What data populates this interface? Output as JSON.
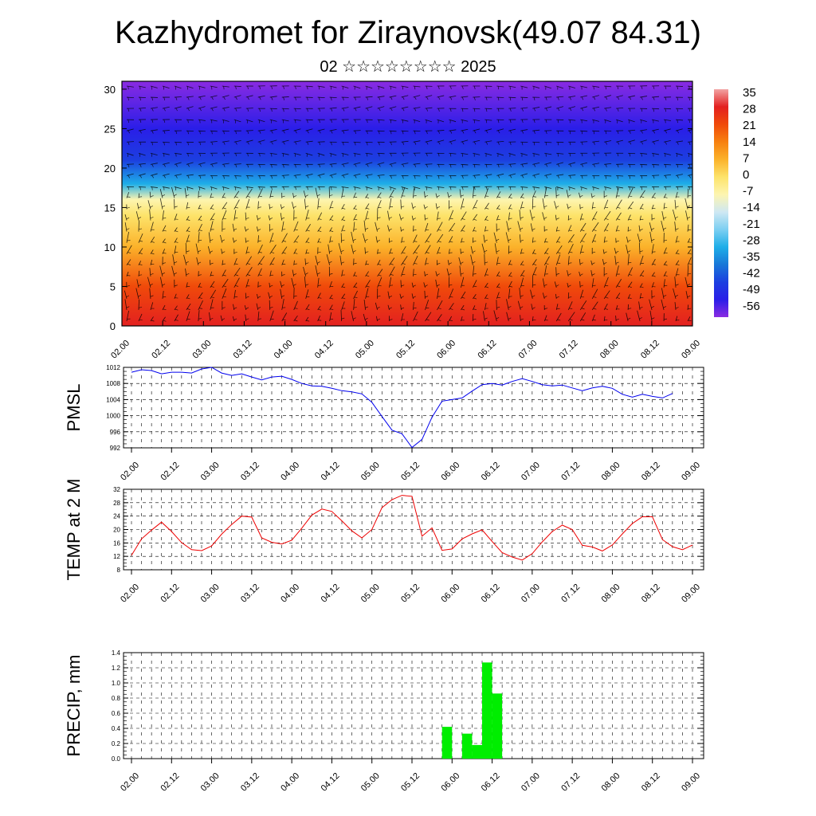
{
  "title": "Kazhydromet for Ziraynovsk(49.07 84.31)",
  "subtitle": "02 ☆☆☆☆☆☆☆☆ 2025",
  "colors": {
    "pmsl_line": "#0000ee",
    "temp_line": "#ee0000",
    "precip_bar": "#00ee00",
    "arrow": "#000000"
  },
  "chart_data": [
    {
      "type": "heatmap",
      "description_of_fill": "temperature by height (km) and time, with wind arrows",
      "x_tick_labels": [
        "02.00",
        "02.12",
        "03.00",
        "03.12",
        "04.00",
        "04.12",
        "05.00",
        "05.12",
        "06.00",
        "06.12",
        "07.00",
        "07.12",
        "08.00",
        "08.12",
        "09.00"
      ],
      "y_tick_labels": [
        "0",
        "5",
        "10",
        "15",
        "20",
        "25",
        "30"
      ],
      "ylim": [
        0,
        31
      ],
      "colorbar_labels": [
        "35",
        "28",
        "21",
        "14",
        "7",
        "0",
        "-7",
        "-14",
        "-21",
        "-28",
        "-35",
        "-42",
        "-49",
        "-56"
      ],
      "colorbar_colors": [
        "#f2a3a3",
        "#e32020",
        "#f04a0a",
        "#f7800f",
        "#fbb22a",
        "#fde36a",
        "#fdf5b0",
        "#cfe8f3",
        "#7ccff2",
        "#1eaee8",
        "#1877d8",
        "#1c3fe0",
        "#2a1ee8",
        "#8a2be2"
      ],
      "temperature_profile": [
        {
          "height_km": 0,
          "temp": 30
        },
        {
          "height_km": 5,
          "temp": 20
        },
        {
          "height_km": 10,
          "temp": 10
        },
        {
          "height_km": 14,
          "temp": 0
        },
        {
          "height_km": 16,
          "temp": -10
        },
        {
          "height_km": 18,
          "temp": -25
        },
        {
          "height_km": 21,
          "temp": -40
        },
        {
          "height_km": 25,
          "temp": -52
        },
        {
          "height_km": 31,
          "temp": -58
        }
      ]
    },
    {
      "type": "line",
      "ylabel": "PMSL",
      "ylim": [
        992,
        1012
      ],
      "y_tick_labels": [
        "1012",
        "1008",
        "1004",
        "1000",
        "996",
        "992"
      ],
      "x_tick_labels": [
        "02.00",
        "02.12",
        "03.00",
        "03.12",
        "04.00",
        "04.12",
        "05.00",
        "05.12",
        "06.00",
        "06.12",
        "07.00",
        "07.12",
        "08.00",
        "08.12",
        "09.00"
      ],
      "x_start_hours": 0,
      "x_step_hours": 3,
      "values": [
        1010.8,
        1011.4,
        1011.2,
        1010.4,
        1010.8,
        1010.8,
        1010.6,
        1011.6,
        1012.0,
        1010.6,
        1010.0,
        1010.4,
        1009.6,
        1008.9,
        1009.6,
        1009.8,
        1009.0,
        1008.0,
        1007.4,
        1007.3,
        1006.8,
        1006.2,
        1005.9,
        1005.4,
        1003.3,
        999.8,
        996.4,
        995.5,
        992.1,
        994.1,
        999.6,
        1003.6,
        1004.0,
        1004.4,
        1006.1,
        1007.7,
        1008.0,
        1007.6,
        1008.5,
        1009.2,
        1008.5,
        1007.7,
        1007.4,
        1007.6,
        1006.9,
        1006.2,
        1006.9,
        1007.3,
        1006.8,
        1005.3,
        1004.6,
        1005.3,
        1004.8,
        1004.4,
        1005.5
      ]
    },
    {
      "type": "line",
      "ylabel": "TEMP at 2 M",
      "ylim": [
        8,
        32
      ],
      "y_tick_labels": [
        "32",
        "28",
        "24",
        "20",
        "16",
        "12",
        "8"
      ],
      "x_tick_labels": [
        "02.00",
        "02.12",
        "03.00",
        "03.12",
        "04.00",
        "04.12",
        "05.00",
        "05.12",
        "06.00",
        "06.12",
        "07.00",
        "07.12",
        "08.00",
        "08.12",
        "09.00"
      ],
      "x_start_hours": 0,
      "x_step_hours": 3,
      "values": [
        12.3,
        17.2,
        19.8,
        22.2,
        19.4,
        16.1,
        14.0,
        13.7,
        15.1,
        18.6,
        21.5,
        24.0,
        23.7,
        17.5,
        16.2,
        15.7,
        16.8,
        20.4,
        24.3,
        26.1,
        25.4,
        22.6,
        19.6,
        17.5,
        20.0,
        26.5,
        28.9,
        30.2,
        29.9,
        18.0,
        20.5,
        13.8,
        14.2,
        17.2,
        18.7,
        19.9,
        16.4,
        13.1,
        11.8,
        10.9,
        12.8,
        16.3,
        19.4,
        21.3,
        20.0,
        15.3,
        14.8,
        13.6,
        15.4,
        18.7,
        21.8,
        23.8,
        23.8,
        17.0,
        14.9,
        14.0,
        15.4
      ]
    },
    {
      "type": "bar",
      "ylabel": "PRECIP, mm",
      "ylim": [
        0,
        1.4
      ],
      "y_tick_labels": [
        "1.4",
        "1.2",
        "1.0",
        "0.8",
        "0.6",
        "0.4",
        "0.2",
        "0.0"
      ],
      "x_tick_labels": [
        "02.00",
        "02.12",
        "03.00",
        "03.12",
        "04.00",
        "04.12",
        "05.00",
        "05.12",
        "06.00",
        "06.12",
        "07.00",
        "07.12",
        "08.00",
        "08.12",
        "09.00"
      ],
      "bar_width_hours": 3,
      "bars": [
        {
          "start_hours": 93,
          "value": 0.42
        },
        {
          "start_hours": 99,
          "value": 0.33
        },
        {
          "start_hours": 102,
          "value": 0.18
        },
        {
          "start_hours": 105,
          "value": 1.27
        },
        {
          "start_hours": 108,
          "value": 0.86
        }
      ]
    }
  ]
}
